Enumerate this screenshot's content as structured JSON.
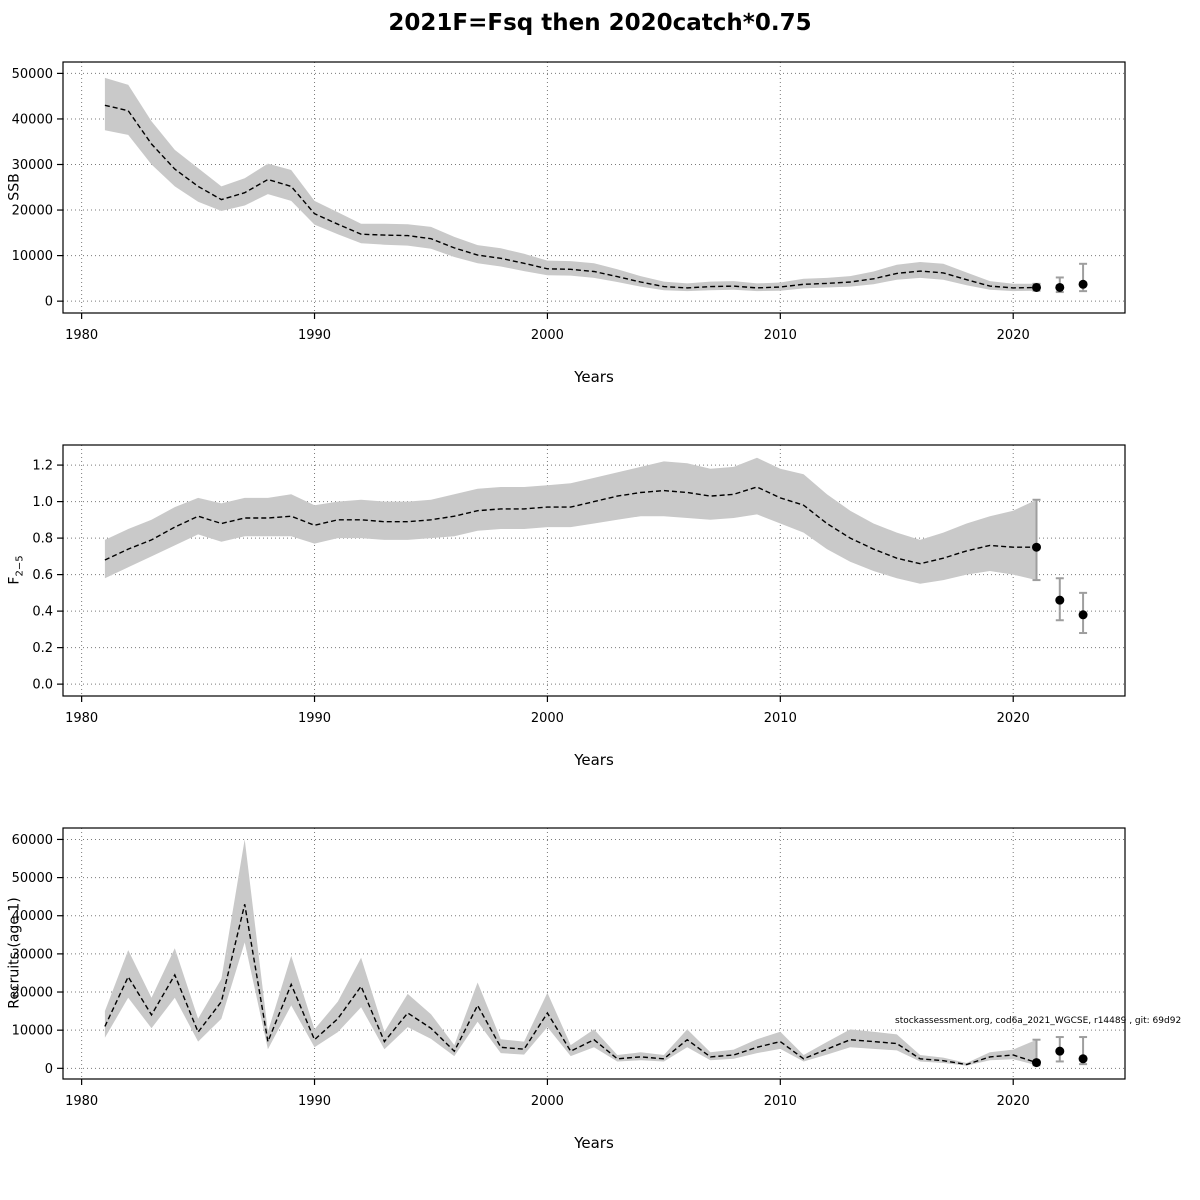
{
  "title": "2021F=Fsq then 2020catch*0.75",
  "watermark": "stockassessment.org, cod6a_2021_WGCSE, r14489 , git: 69d92",
  "colors": {
    "band": "#c9c9c9",
    "line": "#000000",
    "point": "#000000",
    "errorbar": "#9e9e9e"
  },
  "chart_data": [
    {
      "type": "line",
      "name": "ssb",
      "title": "",
      "xlabel": "Years",
      "ylabel_main": "SSB",
      "ylabel_sub": "",
      "xlim": [
        1979.2,
        2024.8
      ],
      "ylim": [
        -2600,
        52500
      ],
      "xticks": [
        1980,
        1990,
        2000,
        2010,
        2020
      ],
      "yticks": [
        0,
        10000,
        20000,
        30000,
        40000,
        50000
      ],
      "ytick_decimals": 0,
      "grid": true,
      "legend": "none",
      "x": [
        1981,
        1982,
        1983,
        1984,
        1985,
        1986,
        1987,
        1988,
        1989,
        1990,
        1991,
        1992,
        1993,
        1994,
        1995,
        1996,
        1997,
        1998,
        1999,
        2000,
        2001,
        2002,
        2003,
        2004,
        2005,
        2006,
        2007,
        2008,
        2009,
        2010,
        2011,
        2012,
        2013,
        2014,
        2015,
        2016,
        2017,
        2018,
        2019,
        2020,
        2021
      ],
      "y": [
        43000,
        41800,
        34500,
        29000,
        25200,
        22300,
        23800,
        26700,
        25200,
        19200,
        16900,
        14700,
        14500,
        14400,
        13700,
        11700,
        10100,
        9400,
        8300,
        7100,
        7000,
        6500,
        5400,
        4200,
        3200,
        2900,
        3200,
        3300,
        2900,
        3100,
        3700,
        3900,
        4200,
        4900,
        6100,
        6600,
        6200,
        4700,
        3300,
        2900,
        3000
      ],
      "lo": [
        37500,
        36500,
        30000,
        25200,
        21800,
        19800,
        21000,
        23500,
        22000,
        16800,
        14700,
        12700,
        12400,
        12200,
        11500,
        9700,
        8300,
        7600,
        6600,
        5700,
        5600,
        5100,
        4200,
        3200,
        2400,
        2200,
        2400,
        2500,
        2200,
        2300,
        2800,
        3000,
        3200,
        3700,
        4700,
        5100,
        4700,
        3500,
        2500,
        2200,
        2300
      ],
      "hi": [
        49000,
        47500,
        39500,
        33200,
        29200,
        25200,
        27000,
        30200,
        28800,
        22000,
        19500,
        17000,
        17000,
        16900,
        16300,
        14100,
        12300,
        11600,
        10400,
        8900,
        8800,
        8300,
        7000,
        5500,
        4300,
        3900,
        4300,
        4400,
        3900,
        4100,
        4900,
        5100,
        5500,
        6500,
        8000,
        8600,
        8200,
        6300,
        4400,
        3800,
        3800
      ],
      "forecast_points": [
        {
          "x": 2021,
          "y": 3000,
          "lo": 2300,
          "hi": 3800
        },
        {
          "x": 2022,
          "y": 3000,
          "lo": 2000,
          "hi": 5200
        },
        {
          "x": 2023,
          "y": 3700,
          "lo": 2200,
          "hi": 8200
        }
      ]
    },
    {
      "type": "line",
      "name": "fbar",
      "title": "",
      "xlabel": "Years",
      "ylabel_main": "F",
      "ylabel_sub": "2−5",
      "xlim": [
        1979.2,
        2024.8
      ],
      "ylim": [
        -0.065,
        1.31
      ],
      "xticks": [
        1980,
        1990,
        2000,
        2010,
        2020
      ],
      "yticks": [
        0.0,
        0.2,
        0.4,
        0.6,
        0.8,
        1.0,
        1.2
      ],
      "ytick_decimals": 1,
      "grid": true,
      "legend": "none",
      "x": [
        1981,
        1982,
        1983,
        1984,
        1985,
        1986,
        1987,
        1988,
        1989,
        1990,
        1991,
        1992,
        1993,
        1994,
        1995,
        1996,
        1997,
        1998,
        1999,
        2000,
        2001,
        2002,
        2003,
        2004,
        2005,
        2006,
        2007,
        2008,
        2009,
        2010,
        2011,
        2012,
        2013,
        2014,
        2015,
        2016,
        2017,
        2018,
        2019,
        2020,
        2021
      ],
      "y": [
        0.68,
        0.74,
        0.79,
        0.86,
        0.92,
        0.88,
        0.91,
        0.91,
        0.92,
        0.87,
        0.9,
        0.9,
        0.89,
        0.89,
        0.9,
        0.92,
        0.95,
        0.96,
        0.96,
        0.97,
        0.97,
        1.0,
        1.03,
        1.05,
        1.06,
        1.05,
        1.03,
        1.04,
        1.08,
        1.02,
        0.98,
        0.88,
        0.8,
        0.74,
        0.69,
        0.66,
        0.69,
        0.73,
        0.76,
        0.75,
        0.75
      ],
      "lo": [
        0.58,
        0.64,
        0.7,
        0.76,
        0.82,
        0.78,
        0.81,
        0.81,
        0.81,
        0.77,
        0.8,
        0.8,
        0.79,
        0.79,
        0.8,
        0.81,
        0.84,
        0.85,
        0.85,
        0.86,
        0.86,
        0.88,
        0.9,
        0.92,
        0.92,
        0.91,
        0.9,
        0.91,
        0.93,
        0.88,
        0.83,
        0.74,
        0.67,
        0.62,
        0.58,
        0.55,
        0.57,
        0.6,
        0.62,
        0.6,
        0.57
      ],
      "hi": [
        0.79,
        0.85,
        0.9,
        0.97,
        1.02,
        0.99,
        1.02,
        1.02,
        1.04,
        0.98,
        1.0,
        1.01,
        1.0,
        1.0,
        1.01,
        1.04,
        1.07,
        1.08,
        1.08,
        1.09,
        1.1,
        1.13,
        1.16,
        1.19,
        1.22,
        1.21,
        1.18,
        1.19,
        1.24,
        1.18,
        1.15,
        1.04,
        0.95,
        0.88,
        0.83,
        0.79,
        0.83,
        0.88,
        0.92,
        0.95,
        1.01
      ],
      "forecast_points": [
        {
          "x": 2021,
          "y": 0.75,
          "lo": 0.57,
          "hi": 1.01
        },
        {
          "x": 2022,
          "y": 0.46,
          "lo": 0.35,
          "hi": 0.58
        },
        {
          "x": 2023,
          "y": 0.38,
          "lo": 0.28,
          "hi": 0.5
        }
      ]
    },
    {
      "type": "line",
      "name": "recruits",
      "title": "",
      "xlabel": "Years",
      "ylabel_main": "Recruits (age 1)",
      "ylabel_sub": "",
      "xlim": [
        1979.2,
        2024.8
      ],
      "ylim": [
        -2800,
        63000
      ],
      "xticks": [
        1980,
        1990,
        2000,
        2010,
        2020
      ],
      "yticks": [
        0,
        10000,
        20000,
        30000,
        40000,
        50000,
        60000
      ],
      "ytick_decimals": 0,
      "grid": true,
      "legend": "none",
      "x": [
        1981,
        1982,
        1983,
        1984,
        1985,
        1986,
        1987,
        1988,
        1989,
        1990,
        1991,
        1992,
        1993,
        1994,
        1995,
        1996,
        1997,
        1998,
        1999,
        2000,
        2001,
        2002,
        2003,
        2004,
        2005,
        2006,
        2007,
        2008,
        2009,
        2010,
        2011,
        2012,
        2013,
        2014,
        2015,
        2016,
        2017,
        2018,
        2019,
        2020,
        2021
      ],
      "y": [
        11000,
        24000,
        14000,
        24500,
        9500,
        17500,
        43000,
        7000,
        22000,
        7500,
        13000,
        21500,
        7000,
        14500,
        10500,
        4500,
        16500,
        5500,
        5000,
        14500,
        4500,
        7500,
        2500,
        3000,
        2500,
        7500,
        3000,
        3500,
        5500,
        7000,
        2500,
        5000,
        7500,
        7000,
        6500,
        2500,
        2000,
        1000,
        3000,
        3500,
        1500
      ],
      "lo": [
        8000,
        18500,
        10500,
        18500,
        7000,
        13000,
        33000,
        5000,
        16500,
        5500,
        9500,
        16000,
        5000,
        10800,
        7700,
        3200,
        12200,
        4000,
        3600,
        10800,
        3200,
        5500,
        1800,
        2100,
        1800,
        5500,
        2100,
        2500,
        4000,
        5100,
        1800,
        3600,
        5500,
        5100,
        4700,
        1800,
        1400,
        700,
        2100,
        2400,
        800
      ],
      "hi": [
        15000,
        31000,
        18500,
        31500,
        13000,
        23500,
        60000,
        9600,
        29500,
        10200,
        17500,
        29000,
        9600,
        19500,
        14200,
        6100,
        22500,
        7600,
        7000,
        19800,
        6100,
        10200,
        3500,
        4200,
        3500,
        10200,
        4200,
        4900,
        7600,
        9600,
        3500,
        6900,
        10200,
        9600,
        8900,
        3500,
        2800,
        1400,
        4200,
        4900,
        7500
      ],
      "forecast_points": [
        {
          "x": 2021,
          "y": 1500,
          "lo": 800,
          "hi": 7500
        },
        {
          "x": 2022,
          "y": 4500,
          "lo": 1800,
          "hi": 8200
        },
        {
          "x": 2023,
          "y": 2500,
          "lo": 1100,
          "hi": 8200
        }
      ]
    }
  ]
}
